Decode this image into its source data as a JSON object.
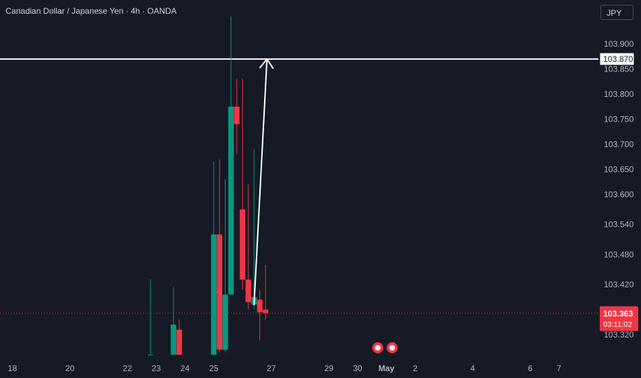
{
  "header": {
    "title": "Canadian Dollar / Japanese Yen · 4h · OANDA",
    "currency": "JPY"
  },
  "colors": {
    "background": "#161a25",
    "bull": "#089981",
    "bear": "#f23645",
    "level_line": "#ffffff",
    "arrow": "#ffffff",
    "price_line": "#f23645",
    "text": "#b2b5be"
  },
  "chart_data": {
    "type": "candlestick",
    "instrument": "Canadian Dollar / Japanese Yen",
    "timeframe": "4h",
    "source": "OANDA",
    "y_tick_labels": [
      "103.900",
      "103.850",
      "103.800",
      "103.750",
      "103.700",
      "103.650",
      "103.600",
      "103.540",
      "103.480",
      "103.420",
      "103.320"
    ],
    "x_tick_labels": [
      {
        "label": "18",
        "day": 18
      },
      {
        "label": "20",
        "day": 20
      },
      {
        "label": "22",
        "day": 22
      },
      {
        "label": "23",
        "day": 23
      },
      {
        "label": "24",
        "day": 24
      },
      {
        "label": "25",
        "day": 25
      },
      {
        "label": "27",
        "day": 27
      },
      {
        "label": "29",
        "day": 29
      },
      {
        "label": "30",
        "day": 30
      },
      {
        "label": "May",
        "day": 31,
        "bold": true
      },
      {
        "label": "2",
        "day": 32
      },
      {
        "label": "4",
        "day": 34
      },
      {
        "label": "6",
        "day": 36
      },
      {
        "label": "7",
        "day": 37
      }
    ],
    "candles": [
      {
        "t": 22.8,
        "o": 103.28,
        "h": 103.43,
        "l": 103.28,
        "c": 103.28
      },
      {
        "t": 23.6,
        "o": 103.28,
        "h": 103.415,
        "l": 103.28,
        "c": 103.34
      },
      {
        "t": 23.8,
        "o": 103.33,
        "h": 103.35,
        "l": 103.28,
        "c": 103.28
      },
      {
        "t": 25.0,
        "o": 103.28,
        "h": 103.665,
        "l": 103.28,
        "c": 103.52
      },
      {
        "t": 25.2,
        "o": 103.52,
        "h": 103.67,
        "l": 103.285,
        "c": 103.29
      },
      {
        "t": 25.4,
        "o": 103.29,
        "h": 103.63,
        "l": 103.285,
        "c": 103.4
      },
      {
        "t": 25.6,
        "o": 103.4,
        "h": 103.955,
        "l": 103.4,
        "c": 103.775
      },
      {
        "t": 25.8,
        "o": 103.775,
        "h": 103.83,
        "l": 103.68,
        "c": 103.74
      },
      {
        "t": 26.0,
        "o": 103.57,
        "h": 103.83,
        "l": 103.41,
        "c": 103.43
      },
      {
        "t": 26.2,
        "o": 103.43,
        "h": 103.62,
        "l": 103.37,
        "c": 103.385
      },
      {
        "t": 26.4,
        "o": 103.38,
        "h": 103.69,
        "l": 103.37,
        "c": 103.395
      },
      {
        "t": 26.6,
        "o": 103.39,
        "h": 103.41,
        "l": 103.31,
        "c": 103.365
      },
      {
        "t": 26.8,
        "o": 103.37,
        "h": 103.46,
        "l": 103.35,
        "c": 103.363
      }
    ],
    "horizontal_level": {
      "value": 103.87,
      "label": "103.870"
    },
    "arrow": {
      "from": {
        "t": 26.4,
        "value": 103.38
      },
      "to": {
        "t": 26.85,
        "value": 103.87
      }
    },
    "current_price": {
      "value": 103.363,
      "label": "103.363",
      "countdown": "03:11:02"
    }
  }
}
